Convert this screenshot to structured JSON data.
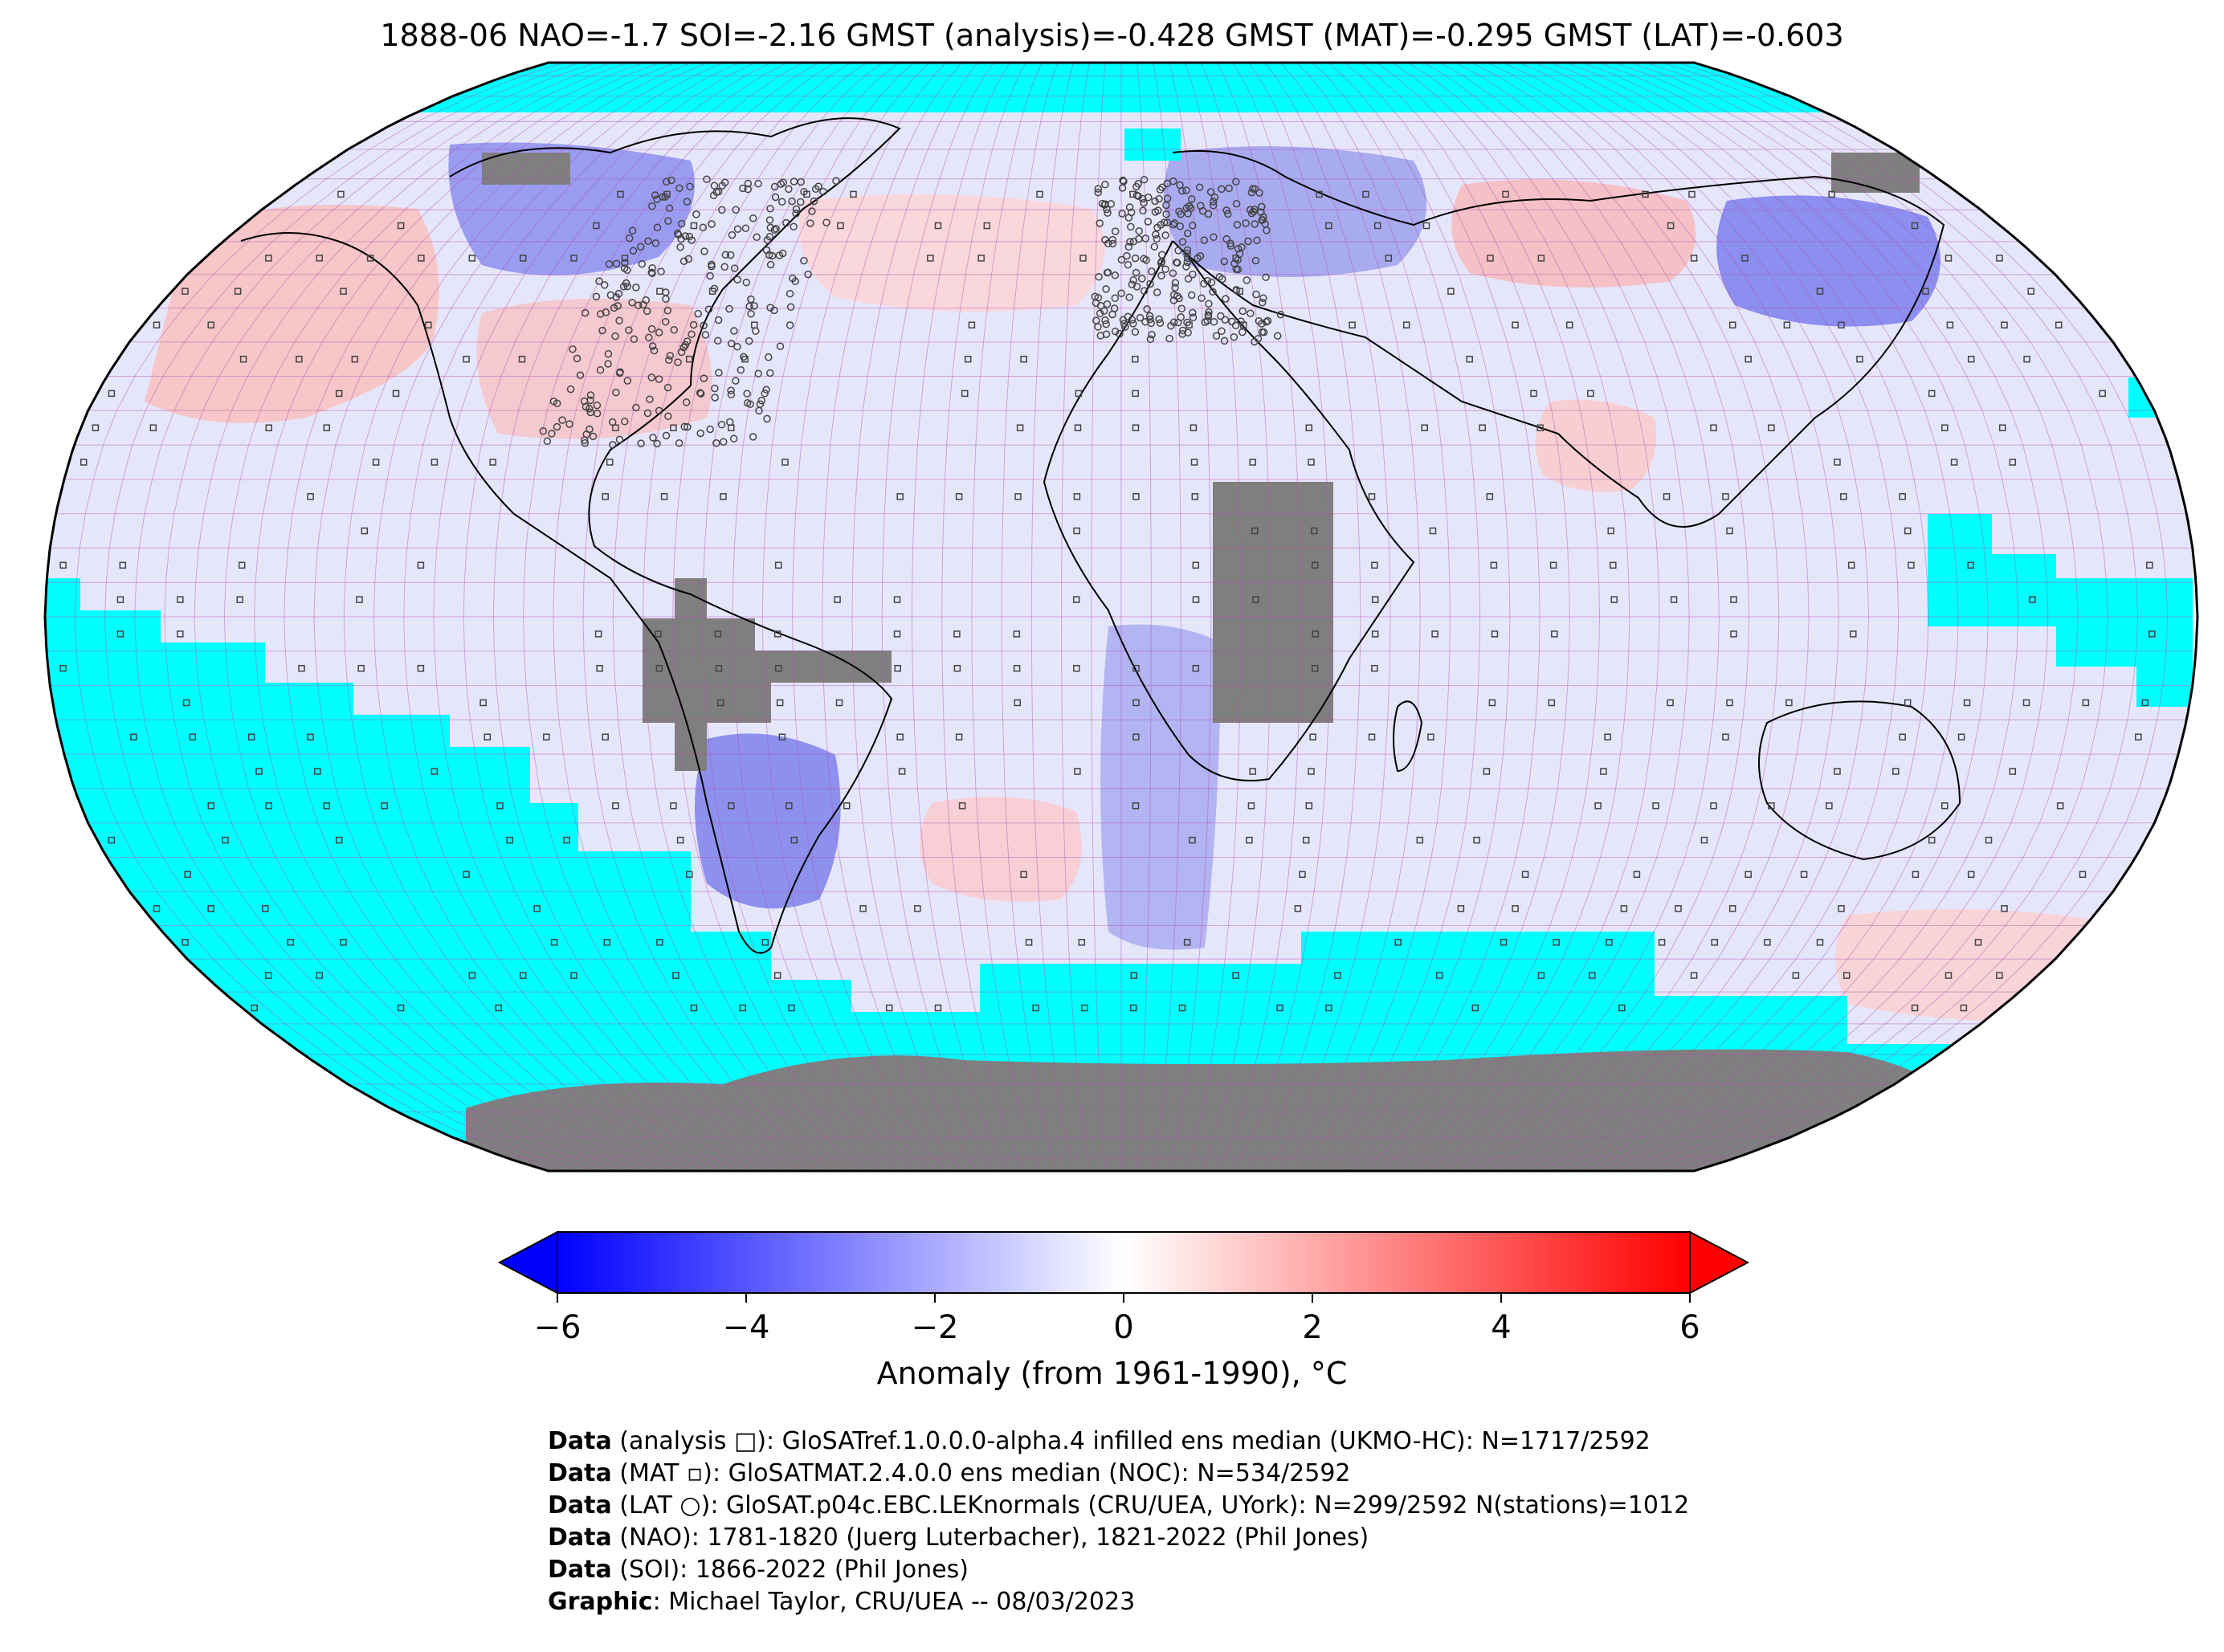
{
  "title": "1888-06 NAO=-1.7 SOI=-2.16 GMST (analysis)=-0.428 GMST (MAT)=-0.295 GMST (LAT)=-0.603",
  "colorbar": {
    "label": "Anomaly (from 1961-1990), °C",
    "ticks": [
      "−6",
      "−4",
      "−2",
      "0",
      "2",
      "4",
      "6"
    ],
    "tick_values": [
      -6,
      -4,
      -2,
      0,
      2,
      4,
      6
    ],
    "range": [
      -6,
      6
    ],
    "colors": {
      "low": "#0000ff",
      "mid": "#ffffff",
      "high": "#ff0000"
    }
  },
  "map_colors": {
    "missing_ocean": "#00ffff",
    "no_data_land": "#7f7f7f",
    "grid": "#b04fb0",
    "coast": "#000000"
  },
  "credits": [
    {
      "bold": "Data",
      "text": " (analysis □): GloSATref.1.0.0.0-alpha.4 infilled ens median (UKMO-HC): N=1717/2592"
    },
    {
      "bold": "Data",
      "text": " (MAT ▫): GloSATMAT.2.4.0.0 ens median (NOC): N=534/2592"
    },
    {
      "bold": "Data",
      "text": " (LAT ○): GloSAT.p04c.EBC.LEKnormals (CRU/UEA, UYork): N=299/2592 N(stations)=1012"
    },
    {
      "bold": "Data",
      "text": " (NAO): 1781-1820 (Juerg Luterbacher), 1821-2022 (Phil Jones)"
    },
    {
      "bold": "Data",
      "text": " (SOI): 1866-2022 (Phil Jones)"
    },
    {
      "bold": "Graphic",
      "text": ": Michael Taylor, CRU/UEA -- 08/03/2023"
    }
  ]
}
